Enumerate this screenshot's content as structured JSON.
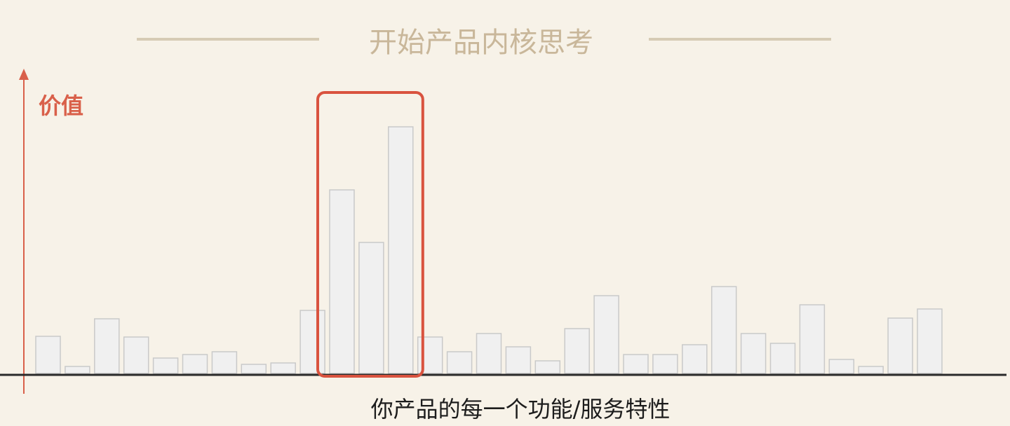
{
  "chart_data": {
    "type": "bar",
    "title": "开始产品内核思考",
    "ylabel": "价值",
    "xlabel": "你产品的每一个功能/服务特性",
    "values": [
      53,
      10,
      78,
      52,
      22,
      27,
      31,
      13,
      15,
      90,
      262,
      187,
      352,
      52,
      31,
      57,
      38,
      18,
      64,
      111,
      27,
      27,
      41,
      124,
      57,
      43,
      98,
      20,
      10,
      79,
      92
    ],
    "highlight_range": [
      10,
      12
    ],
    "ylim": [
      0,
      400
    ],
    "grid": false,
    "colors": {
      "bar_fill": "#f0f0f0",
      "bar_stroke": "#c9c9c9",
      "highlight": "#d9533f",
      "axis": "#d9604a",
      "baseline": "#2a2a2a",
      "title": "#c9b79a"
    }
  }
}
